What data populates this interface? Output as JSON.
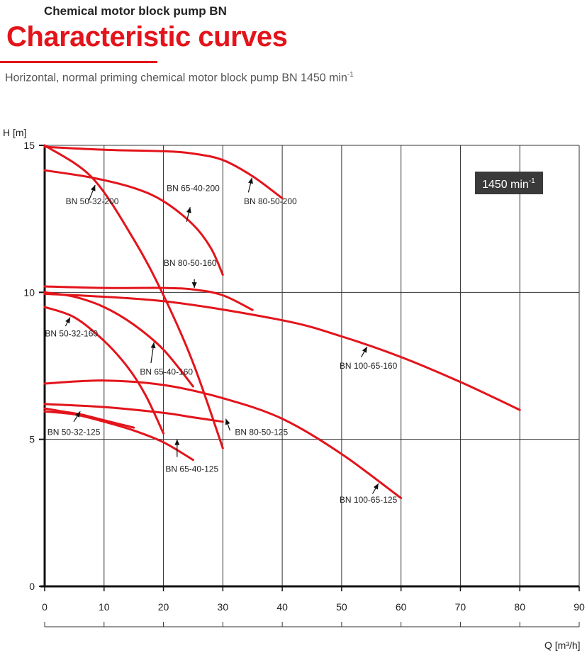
{
  "header": {
    "subtitle": "Chemical motor block pump BN",
    "title": "Characteristic curves",
    "description": "Horizontal, normal priming chemical motor block pump BN 1450 min",
    "description_sup": "-1"
  },
  "chart_data": {
    "type": "line",
    "title": "Characteristic curves",
    "xlabel": "Q [m³/h]",
    "ylabel": "H [m]",
    "xlim": [
      0,
      90
    ],
    "ylim": [
      0,
      15
    ],
    "xticks": [
      0,
      10,
      20,
      30,
      40,
      50,
      60,
      70,
      80,
      90
    ],
    "yticks": [
      0,
      5,
      10,
      15
    ],
    "grid": true,
    "speed_badge": {
      "text": "1450 min",
      "sup": "-1"
    },
    "series": [
      {
        "name": "BN 50-32-200",
        "x": [
          0,
          8,
          15,
          20,
          25,
          30
        ],
        "y": [
          15,
          13.9,
          11.8,
          9.9,
          7.6,
          4.7
        ]
      },
      {
        "name": "BN 65-40-200",
        "x": [
          0,
          8,
          15,
          20,
          25,
          28,
          30
        ],
        "y": [
          14.15,
          13.9,
          13.55,
          13.1,
          12.3,
          11.5,
          10.6
        ]
      },
      {
        "name": "BN 80-50-200",
        "x": [
          0,
          10,
          20,
          25,
          30,
          35,
          40
        ],
        "y": [
          14.95,
          14.85,
          14.8,
          14.72,
          14.5,
          13.95,
          13.2
        ]
      },
      {
        "name": "BN 50-32-160",
        "x": [
          0,
          5,
          10,
          14,
          17,
          20
        ],
        "y": [
          9.5,
          9.15,
          8.35,
          7.45,
          6.5,
          5.2
        ]
      },
      {
        "name": "BN 65-40-160",
        "x": [
          0,
          5,
          10,
          15,
          20,
          25
        ],
        "y": [
          10.0,
          9.85,
          9.5,
          8.9,
          8.05,
          6.8
        ]
      },
      {
        "name": "BN 80-50-160",
        "x": [
          0,
          10,
          20,
          25,
          30,
          35
        ],
        "y": [
          10.2,
          10.15,
          10.15,
          10.1,
          9.9,
          9.4
        ]
      },
      {
        "name": "BN 100-65-160",
        "x": [
          0,
          20,
          40,
          50,
          60,
          70,
          80
        ],
        "y": [
          9.95,
          9.7,
          9.05,
          8.5,
          7.8,
          6.95,
          6.0
        ]
      },
      {
        "name": "BN 50-32-125",
        "x": [
          0,
          3,
          6,
          9,
          12,
          15
        ],
        "y": [
          6.05,
          5.95,
          5.85,
          5.7,
          5.55,
          5.4
        ]
      },
      {
        "name": "BN 65-40-125",
        "x": [
          0,
          5,
          10,
          15,
          20,
          25
        ],
        "y": [
          5.95,
          5.85,
          5.6,
          5.3,
          4.9,
          4.3
        ]
      },
      {
        "name": "BN 80-50-125",
        "x": [
          0,
          10,
          20,
          25,
          30
        ],
        "y": [
          6.2,
          6.1,
          5.9,
          5.75,
          5.6
        ]
      },
      {
        "name": "BN 100-65-125",
        "x": [
          0,
          10,
          20,
          30,
          40,
          50,
          60
        ],
        "y": [
          6.9,
          7.0,
          6.85,
          6.4,
          5.7,
          4.5,
          3.0
        ]
      }
    ],
    "labels": [
      {
        "text": "BN 50-32-200",
        "x": 8,
        "y": 13.0,
        "ax": 8.5,
        "ay": 13.65,
        "bx": 7.4,
        "by": 13.1
      },
      {
        "text": "BN 65-40-200",
        "x": 25,
        "y": 13.45,
        "ax": 24.5,
        "ay": 12.9,
        "bx": 23.9,
        "by": 12.4
      },
      {
        "text": "BN 80-50-200",
        "x": 38,
        "y": 13.0,
        "ax": 34.9,
        "ay": 13.9,
        "bx": 34.3,
        "by": 13.4
      },
      {
        "text": "BN 80-50-160",
        "x": 24.5,
        "y": 10.9,
        "ax": 25.2,
        "ay": 10.15,
        "bx": 25.2,
        "by": 10.45
      },
      {
        "text": "BN 50-32-160",
        "x": 4.5,
        "y": 8.5,
        "ax": 4.3,
        "ay": 9.15,
        "bx": 3.5,
        "by": 8.85
      },
      {
        "text": "BN 65-40-160",
        "x": 20.5,
        "y": 7.2,
        "ax": 18.4,
        "ay": 8.3,
        "bx": 17.9,
        "by": 7.6
      },
      {
        "text": "BN 100-65-160",
        "x": 54.5,
        "y": 7.4,
        "ax": 54.3,
        "ay": 8.15,
        "bx": 53.3,
        "by": 7.8
      },
      {
        "text": "BN 50-32-125",
        "x": 4.9,
        "y": 5.15,
        "ax": 6.0,
        "ay": 5.95,
        "bx": 4.9,
        "by": 5.6
      },
      {
        "text": "BN 65-40-125",
        "x": 24.8,
        "y": 3.9,
        "ax": 22.3,
        "ay": 5.0,
        "bx": 22.3,
        "by": 4.4
      },
      {
        "text": "BN 80-50-125",
        "x": 36.5,
        "y": 5.15,
        "ax": 30.5,
        "ay": 5.7,
        "bx": 31.2,
        "by": 5.3
      },
      {
        "text": "BN 100-65-125",
        "x": 54.5,
        "y": 2.85,
        "ax": 56.2,
        "ay": 3.5,
        "bx": 55.2,
        "by": 3.15
      }
    ]
  }
}
